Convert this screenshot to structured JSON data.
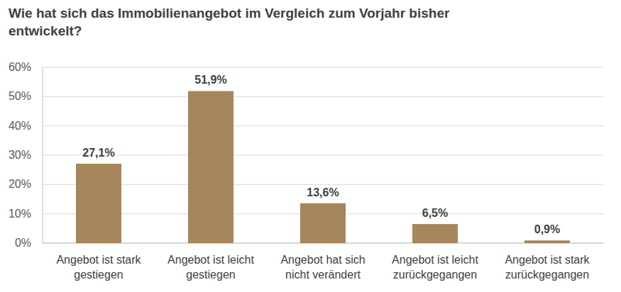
{
  "chart_data": {
    "type": "bar",
    "title": "Wie hat sich das Immobilienangebot im Vergleich zum Vorjahr bisher entwickelt?",
    "categories": [
      "Angebot ist stark gestiegen",
      "Angebot ist leicht gestiegen",
      "Angebot hat sich nicht verändert",
      "Angebot ist leicht zurückgegangen",
      "Angebot ist stark zurückgegangen"
    ],
    "values": [
      27.1,
      51.9,
      13.6,
      6.5,
      0.9
    ],
    "value_labels": [
      "27,1%",
      "51,9%",
      "13,6%",
      "6,5%",
      "0,9%"
    ],
    "color": "#a6865a",
    "ylim": [
      0,
      60
    ],
    "yticks": [
      {
        "value": 0,
        "label": "0%"
      },
      {
        "value": 10,
        "label": "10%"
      },
      {
        "value": 20,
        "label": "20%"
      },
      {
        "value": 30,
        "label": "30%"
      },
      {
        "value": 40,
        "label": "40%"
      },
      {
        "value": 50,
        "label": "50%"
      },
      {
        "value": 60,
        "label": "60%"
      }
    ],
    "grid": true,
    "data_labels": true
  }
}
